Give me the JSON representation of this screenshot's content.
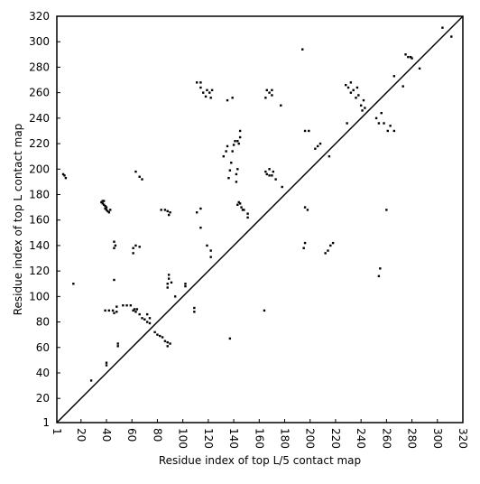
{
  "chart_data": {
    "type": "scatter",
    "x_label": "Residue index of top L/5 contact map",
    "y_label": "Residue index of top L contact map",
    "xlim": [
      1,
      320
    ],
    "ylim": [
      1,
      320
    ],
    "xticks": [
      1,
      20,
      40,
      60,
      80,
      100,
      120,
      140,
      160,
      180,
      200,
      220,
      240,
      260,
      280,
      300,
      320
    ],
    "yticks": [
      1,
      20,
      40,
      60,
      80,
      100,
      120,
      140,
      160,
      180,
      200,
      220,
      240,
      260,
      280,
      300,
      320
    ],
    "color": "#000000",
    "diagonal": true,
    "x": [
      6,
      7,
      8,
      14,
      36,
      37,
      37,
      38,
      38,
      39,
      39,
      40,
      40,
      41,
      42,
      43,
      46,
      46,
      47,
      46,
      39,
      42,
      45,
      46,
      48,
      48,
      53,
      56,
      59,
      61,
      62,
      63,
      64,
      66,
      68,
      70,
      72,
      72,
      74,
      74,
      49,
      49,
      40,
      40,
      28,
      63,
      66,
      68,
      61,
      61,
      63,
      66,
      78,
      80,
      82,
      84,
      86,
      88,
      88,
      90,
      88,
      88,
      89,
      89,
      91,
      94,
      102,
      102,
      83,
      86,
      88,
      89,
      90,
      109,
      109,
      111,
      114,
      114,
      116,
      118,
      119,
      121,
      122,
      123,
      114,
      111,
      114,
      119,
      122,
      122,
      132,
      134,
      135,
      136,
      137,
      138,
      139,
      140,
      141,
      135,
      139,
      142,
      142,
      143,
      143,
      144,
      145,
      145,
      143,
      144,
      145,
      146,
      147,
      148,
      151,
      151,
      137,
      164,
      165,
      166,
      168,
      170,
      170,
      165,
      166,
      168,
      168,
      170,
      171,
      173,
      177,
      178,
      194,
      196,
      199,
      196,
      198,
      195,
      196,
      204,
      206,
      208,
      212,
      214,
      216,
      218,
      215,
      228,
      230,
      232,
      232,
      234,
      236,
      237,
      238,
      229,
      240,
      241,
      242,
      243,
      252,
      254,
      256,
      258,
      261,
      263,
      266,
      254,
      255,
      260,
      266,
      273,
      275,
      277,
      279,
      280,
      286,
      304,
      311
    ],
    "values": [
      196,
      195,
      193,
      110,
      174,
      175,
      173,
      172,
      175,
      171,
      169,
      170,
      168,
      167,
      166,
      168,
      138,
      143,
      140,
      113,
      89,
      89,
      89,
      87,
      92,
      88,
      93,
      93,
      93,
      89,
      90,
      88,
      90,
      86,
      83,
      82,
      86,
      80,
      79,
      83,
      61,
      63,
      46,
      48,
      34,
      198,
      194,
      192,
      134,
      138,
      140,
      139,
      72,
      70,
      69,
      68,
      65,
      64,
      61,
      63,
      107,
      110,
      114,
      117,
      111,
      100,
      108,
      110,
      168,
      168,
      167,
      164,
      166,
      88,
      91,
      268,
      268,
      264,
      260,
      257,
      262,
      260,
      256,
      262,
      154,
      166,
      169,
      140,
      136,
      131,
      210,
      214,
      218,
      193,
      199,
      205,
      214,
      219,
      222,
      254,
      256,
      190,
      196,
      200,
      222,
      220,
      225,
      230,
      172,
      174,
      173,
      170,
      168,
      168,
      165,
      162,
      67,
      89,
      256,
      262,
      260,
      258,
      262,
      198,
      196,
      195,
      200,
      195,
      198,
      192,
      250,
      186,
      294,
      230,
      230,
      170,
      168,
      138,
      142,
      216,
      218,
      220,
      134,
      136,
      140,
      142,
      210,
      266,
      264,
      268,
      260,
      262,
      256,
      264,
      258,
      236,
      250,
      246,
      254,
      248,
      240,
      236,
      244,
      236,
      230,
      234,
      230,
      116,
      122,
      168,
      273,
      265,
      290,
      288,
      288,
      287,
      279,
      311,
      304
    ]
  }
}
